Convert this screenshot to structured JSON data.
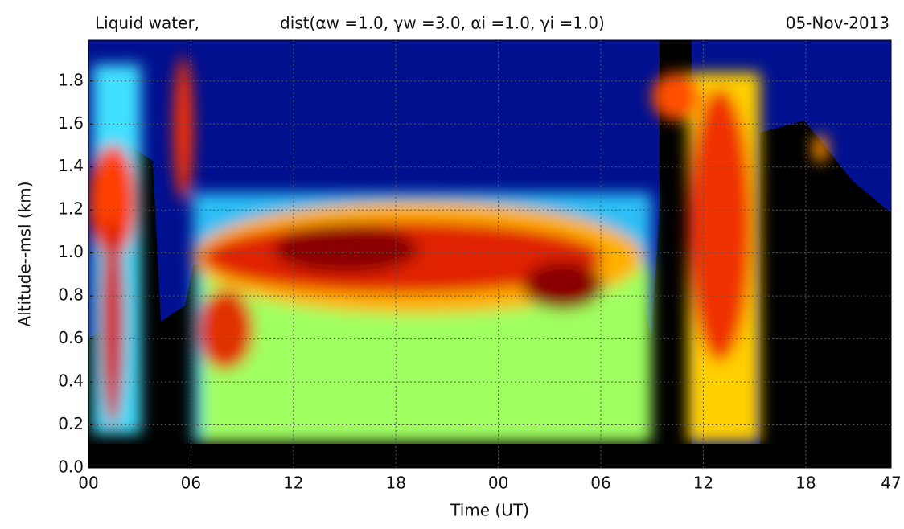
{
  "chart_data": {
    "type": "heatmap",
    "title": "Liquid water,",
    "subtitle": "dist(αw =1.0, γw =3.0, αi =1.0, γi =1.0)",
    "date": "05-Nov-2013",
    "x_label": "Time (UT)",
    "y_label": "Altitude--msl (km)",
    "xlim": [
      0,
      47
    ],
    "xticks": [
      {
        "value": 0,
        "label": "00"
      },
      {
        "value": 6,
        "label": "06"
      },
      12,
      18,
      {
        "value": 24,
        "label": "00"
      },
      {
        "value": 30,
        "label": "06"
      },
      {
        "value": 36,
        "label": "12"
      },
      {
        "value": 42,
        "label": "18"
      },
      47
    ],
    "ylim": [
      0,
      1.99
    ],
    "yticks": [
      {
        "value": 0,
        "label": "0.0"
      },
      0.2,
      0.4,
      0.6,
      0.8,
      {
        "value": 1,
        "label": "1.0"
      },
      1.2,
      1.4,
      1.6,
      1.8
    ],
    "grid": true
  }
}
